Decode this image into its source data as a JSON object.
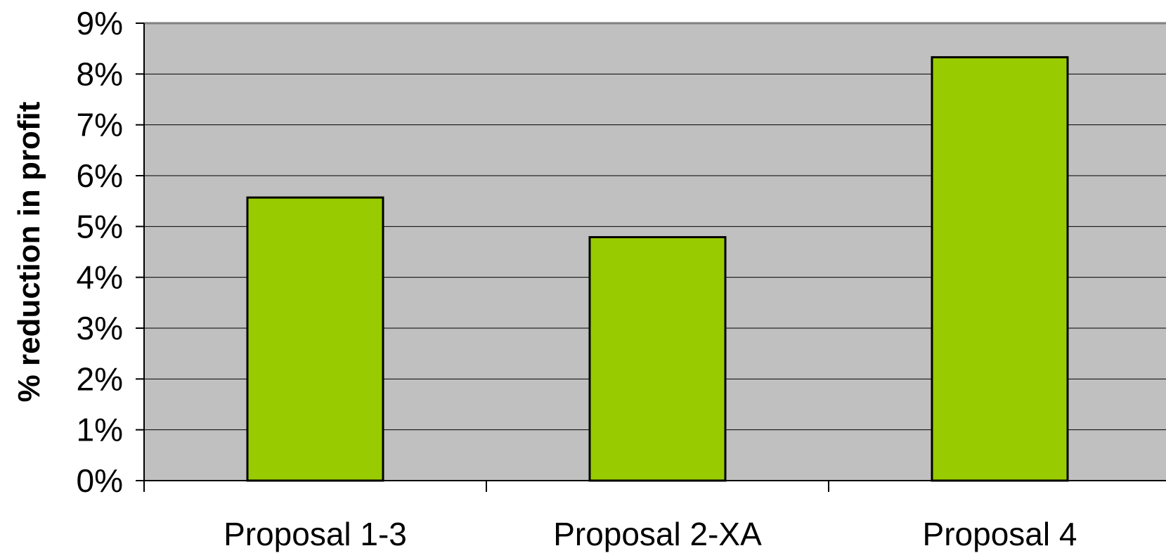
{
  "chart_data": {
    "type": "bar",
    "title": "",
    "xlabel": "",
    "ylabel": "% reduction in profit",
    "categories": [
      "Proposal 1-3",
      "Proposal 2-XA",
      "Proposal 4"
    ],
    "values": [
      5.57,
      4.79,
      8.33
    ],
    "ylim": [
      0,
      9
    ],
    "yticks": [
      "0%",
      "1%",
      "2%",
      "3%",
      "4%",
      "5%",
      "6%",
      "7%",
      "8%",
      "9%"
    ],
    "value_unit": "%",
    "grid": true,
    "legend": "none",
    "colors": {
      "bar_fill": "#99cc00",
      "bar_stroke": "#000000",
      "plot_background": "#c0c0c0",
      "gridline": "#000000"
    }
  }
}
